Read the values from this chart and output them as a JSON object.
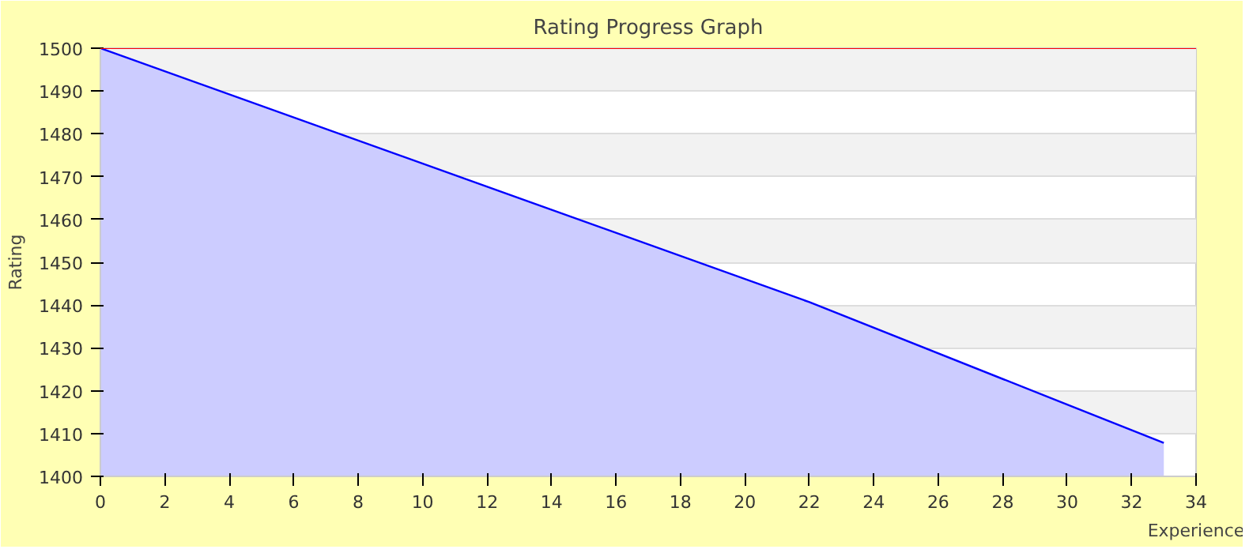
{
  "chart_data": {
    "type": "area",
    "title": "Rating Progress Graph",
    "xlabel": "Experience",
    "ylabel": "Rating",
    "x": [
      0,
      22,
      33
    ],
    "series": [
      {
        "color": "#0000ff",
        "values": [
          1500,
          1440.7,
          1407.8
        ]
      }
    ],
    "xlim": [
      0,
      34
    ],
    "xticks": [
      0,
      2,
      4,
      6,
      8,
      10,
      12,
      14,
      16,
      18,
      20,
      22,
      24,
      26,
      28,
      30,
      32,
      34
    ],
    "ylim": [
      1400,
      1500
    ],
    "yticks": [
      1400,
      1410,
      1420,
      1430,
      1440,
      1450,
      1460,
      1470,
      1480,
      1490,
      1500
    ],
    "ref_lines": [
      {
        "axis": "y",
        "value": 1500,
        "color": "#ff0000"
      }
    ],
    "grid": "y"
  }
}
